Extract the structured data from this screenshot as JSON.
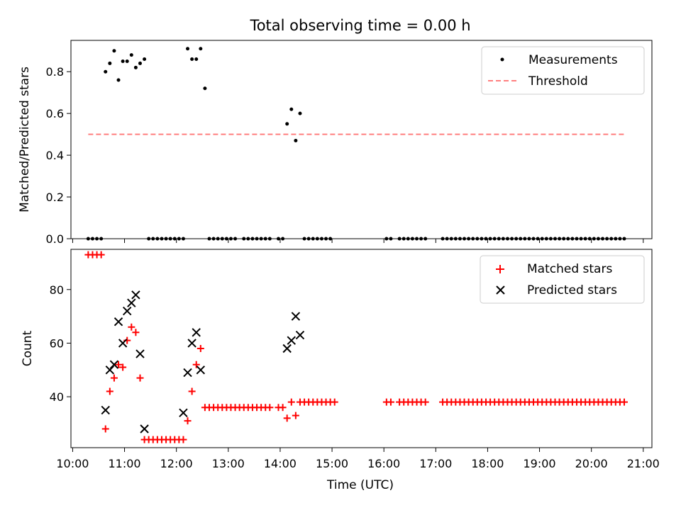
{
  "title": "Total observing time = 0.00 h",
  "chart_data": [
    {
      "type": "scatter",
      "ylabel": "Matched/Predicted stars",
      "ylim": [
        0,
        0.95
      ],
      "yticks": [
        0.0,
        0.2,
        0.4,
        0.6,
        0.8
      ],
      "ytick_labels": [
        "0.0",
        "0.2",
        "0.4",
        "0.6",
        "0.8"
      ],
      "legend_position": "top-right",
      "threshold": {
        "name": "Threshold",
        "color": "#ff7f7f",
        "value": 0.5,
        "x_start": "10:18",
        "x_end": "20:38"
      },
      "series": [
        {
          "name": "Measurements",
          "color": "#000000",
          "marker": "dot",
          "points": [
            [
              "10:18",
              0
            ],
            [
              "10:23",
              0
            ],
            [
              "10:28",
              0
            ],
            [
              "10:33",
              0
            ],
            [
              "10:38",
              0.8
            ],
            [
              "10:43",
              0.84
            ],
            [
              "10:48",
              0.9
            ],
            [
              "10:53",
              0.76
            ],
            [
              "10:58",
              0.85
            ],
            [
              "11:03",
              0.85
            ],
            [
              "11:08",
              0.88
            ],
            [
              "11:13",
              0.82
            ],
            [
              "11:18",
              0.84
            ],
            [
              "11:23",
              0.86
            ],
            [
              "11:28",
              0
            ],
            [
              "11:33",
              0
            ],
            [
              "11:38",
              0
            ],
            [
              "11:43",
              0
            ],
            [
              "11:48",
              0
            ],
            [
              "11:53",
              0
            ],
            [
              "11:58",
              0
            ],
            [
              "12:03",
              0
            ],
            [
              "12:08",
              0
            ],
            [
              "12:13",
              0.91
            ],
            [
              "12:18",
              0.86
            ],
            [
              "12:23",
              0.86
            ],
            [
              "12:28",
              0.91
            ],
            [
              "12:33",
              0.72
            ],
            [
              "12:38",
              0
            ],
            [
              "12:43",
              0
            ],
            [
              "12:48",
              0
            ],
            [
              "12:53",
              0
            ],
            [
              "12:58",
              0
            ],
            [
              "13:03",
              0
            ],
            [
              "13:08",
              0
            ],
            [
              "13:18",
              0
            ],
            [
              "13:23",
              0
            ],
            [
              "13:28",
              0
            ],
            [
              "13:33",
              0
            ],
            [
              "13:38",
              0
            ],
            [
              "13:43",
              0
            ],
            [
              "13:48",
              0
            ],
            [
              "13:58",
              0
            ],
            [
              "14:03",
              0
            ],
            [
              "14:08",
              0.55
            ],
            [
              "14:13",
              0.62
            ],
            [
              "14:18",
              0.47
            ],
            [
              "14:23",
              0.6
            ],
            [
              "14:28",
              0
            ],
            [
              "14:33",
              0
            ],
            [
              "14:38",
              0
            ],
            [
              "14:43",
              0
            ],
            [
              "14:48",
              0
            ],
            [
              "14:53",
              0
            ],
            [
              "14:58",
              0
            ],
            [
              "16:03",
              0
            ],
            [
              "16:08",
              0
            ],
            [
              "16:18",
              0
            ],
            [
              "16:23",
              0
            ],
            [
              "16:28",
              0
            ],
            [
              "16:33",
              0
            ],
            [
              "16:38",
              0
            ],
            [
              "16:43",
              0
            ],
            [
              "16:48",
              0
            ],
            [
              "17:08",
              0
            ],
            [
              "17:13",
              0
            ],
            [
              "17:18",
              0
            ],
            [
              "17:23",
              0
            ],
            [
              "17:28",
              0
            ],
            [
              "17:33",
              0
            ],
            [
              "17:38",
              0
            ],
            [
              "17:43",
              0
            ],
            [
              "17:48",
              0
            ],
            [
              "17:53",
              0
            ],
            [
              "17:58",
              0
            ],
            [
              "18:03",
              0
            ],
            [
              "18:08",
              0
            ],
            [
              "18:13",
              0
            ],
            [
              "18:18",
              0
            ],
            [
              "18:23",
              0
            ],
            [
              "18:28",
              0
            ],
            [
              "18:33",
              0
            ],
            [
              "18:38",
              0
            ],
            [
              "18:43",
              0
            ],
            [
              "18:48",
              0
            ],
            [
              "18:53",
              0
            ],
            [
              "18:58",
              0
            ],
            [
              "19:03",
              0
            ],
            [
              "19:08",
              0
            ],
            [
              "19:13",
              0
            ],
            [
              "19:18",
              0
            ],
            [
              "19:23",
              0
            ],
            [
              "19:28",
              0
            ],
            [
              "19:33",
              0
            ],
            [
              "19:38",
              0
            ],
            [
              "19:43",
              0
            ],
            [
              "19:48",
              0
            ],
            [
              "19:53",
              0
            ],
            [
              "19:58",
              0
            ],
            [
              "20:03",
              0
            ],
            [
              "20:08",
              0
            ],
            [
              "20:13",
              0
            ],
            [
              "20:18",
              0
            ],
            [
              "20:23",
              0
            ],
            [
              "20:28",
              0
            ],
            [
              "20:33",
              0
            ],
            [
              "20:38",
              0
            ]
          ]
        }
      ]
    },
    {
      "type": "scatter",
      "xlabel": "Time (UTC)",
      "ylabel": "Count",
      "ylim": [
        21,
        95
      ],
      "yticks": [
        40,
        60,
        80
      ],
      "ytick_labels": [
        "40",
        "60",
        "80"
      ],
      "legend_position": "top-right",
      "series": [
        {
          "name": "Matched stars",
          "color": "#ff0000",
          "marker": "plus",
          "points": [
            [
              "10:18",
              93
            ],
            [
              "10:23",
              93
            ],
            [
              "10:28",
              93
            ],
            [
              "10:33",
              93
            ],
            [
              "10:38",
              28
            ],
            [
              "10:43",
              42
            ],
            [
              "10:48",
              47
            ],
            [
              "10:53",
              52
            ],
            [
              "10:58",
              51
            ],
            [
              "11:03",
              61
            ],
            [
              "11:08",
              66
            ],
            [
              "11:13",
              64
            ],
            [
              "11:18",
              47
            ],
            [
              "11:23",
              24
            ],
            [
              "11:28",
              24
            ],
            [
              "11:33",
              24
            ],
            [
              "11:38",
              24
            ],
            [
              "11:43",
              24
            ],
            [
              "11:48",
              24
            ],
            [
              "11:53",
              24
            ],
            [
              "11:58",
              24
            ],
            [
              "12:03",
              24
            ],
            [
              "12:08",
              24
            ],
            [
              "12:13",
              31
            ],
            [
              "12:18",
              42
            ],
            [
              "12:23",
              52
            ],
            [
              "12:28",
              58
            ],
            [
              "12:33",
              36
            ],
            [
              "12:38",
              36
            ],
            [
              "12:43",
              36
            ],
            [
              "12:48",
              36
            ],
            [
              "12:53",
              36
            ],
            [
              "12:58",
              36
            ],
            [
              "13:03",
              36
            ],
            [
              "13:08",
              36
            ],
            [
              "13:13",
              36
            ],
            [
              "13:18",
              36
            ],
            [
              "13:23",
              36
            ],
            [
              "13:28",
              36
            ],
            [
              "13:33",
              36
            ],
            [
              "13:38",
              36
            ],
            [
              "13:43",
              36
            ],
            [
              "13:48",
              36
            ],
            [
              "13:58",
              36
            ],
            [
              "14:03",
              36
            ],
            [
              "14:08",
              32
            ],
            [
              "14:13",
              38
            ],
            [
              "14:18",
              33
            ],
            [
              "14:23",
              38
            ],
            [
              "14:28",
              38
            ],
            [
              "14:33",
              38
            ],
            [
              "14:38",
              38
            ],
            [
              "14:43",
              38
            ],
            [
              "14:48",
              38
            ],
            [
              "14:53",
              38
            ],
            [
              "14:58",
              38
            ],
            [
              "15:03",
              38
            ],
            [
              "16:03",
              38
            ],
            [
              "16:08",
              38
            ],
            [
              "16:18",
              38
            ],
            [
              "16:23",
              38
            ],
            [
              "16:28",
              38
            ],
            [
              "16:33",
              38
            ],
            [
              "16:38",
              38
            ],
            [
              "16:43",
              38
            ],
            [
              "16:48",
              38
            ],
            [
              "17:08",
              38
            ],
            [
              "17:13",
              38
            ],
            [
              "17:18",
              38
            ],
            [
              "17:23",
              38
            ],
            [
              "17:28",
              38
            ],
            [
              "17:33",
              38
            ],
            [
              "17:38",
              38
            ],
            [
              "17:43",
              38
            ],
            [
              "17:48",
              38
            ],
            [
              "17:53",
              38
            ],
            [
              "17:58",
              38
            ],
            [
              "18:03",
              38
            ],
            [
              "18:08",
              38
            ],
            [
              "18:13",
              38
            ],
            [
              "18:18",
              38
            ],
            [
              "18:23",
              38
            ],
            [
              "18:28",
              38
            ],
            [
              "18:33",
              38
            ],
            [
              "18:38",
              38
            ],
            [
              "18:43",
              38
            ],
            [
              "18:48",
              38
            ],
            [
              "18:53",
              38
            ],
            [
              "18:58",
              38
            ],
            [
              "19:03",
              38
            ],
            [
              "19:08",
              38
            ],
            [
              "19:13",
              38
            ],
            [
              "19:18",
              38
            ],
            [
              "19:23",
              38
            ],
            [
              "19:28",
              38
            ],
            [
              "19:33",
              38
            ],
            [
              "19:38",
              38
            ],
            [
              "19:43",
              38
            ],
            [
              "19:48",
              38
            ],
            [
              "19:53",
              38
            ],
            [
              "19:58",
              38
            ],
            [
              "20:03",
              38
            ],
            [
              "20:08",
              38
            ],
            [
              "20:13",
              38
            ],
            [
              "20:18",
              38
            ],
            [
              "20:23",
              38
            ],
            [
              "20:28",
              38
            ],
            [
              "20:33",
              38
            ],
            [
              "20:38",
              38
            ]
          ]
        },
        {
          "name": "Predicted stars",
          "color": "#000000",
          "marker": "x",
          "points": [
            [
              "10:38",
              35
            ],
            [
              "10:43",
              50
            ],
            [
              "10:48",
              52
            ],
            [
              "10:53",
              68
            ],
            [
              "10:58",
              60
            ],
            [
              "11:03",
              72
            ],
            [
              "11:08",
              75
            ],
            [
              "11:13",
              78
            ],
            [
              "11:18",
              56
            ],
            [
              "11:23",
              28
            ],
            [
              "12:08",
              34
            ],
            [
              "12:13",
              49
            ],
            [
              "12:18",
              60
            ],
            [
              "12:23",
              64
            ],
            [
              "12:28",
              50
            ],
            [
              "14:08",
              58
            ],
            [
              "14:13",
              61
            ],
            [
              "14:18",
              70
            ],
            [
              "14:23",
              63
            ]
          ]
        }
      ]
    }
  ],
  "x_axis": {
    "range": [
      "09:58",
      "21:10"
    ],
    "ticks": [
      "10:00",
      "11:00",
      "12:00",
      "13:00",
      "14:00",
      "15:00",
      "16:00",
      "17:00",
      "18:00",
      "19:00",
      "20:00",
      "21:00"
    ]
  }
}
